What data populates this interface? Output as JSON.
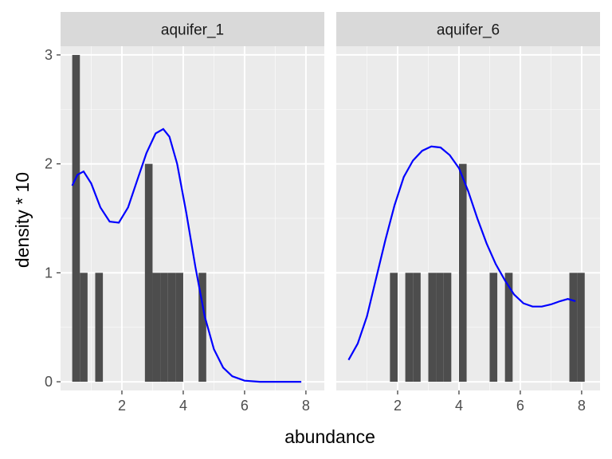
{
  "chart_data": {
    "type": "bar",
    "xlabel": "abundance",
    "ylabel": "density * 10",
    "xlim": [
      0,
      8.6
    ],
    "ylim": [
      -0.08,
      3.08
    ],
    "xticks": [
      2,
      4,
      6,
      8
    ],
    "yticks": [
      0,
      1,
      2,
      3
    ],
    "bin_width": 0.25,
    "grid": true,
    "colors": {
      "panel": "#ebebeb",
      "strip": "#d9d9d9",
      "bars": "#4d4d4d",
      "curve": "#0000ff",
      "grid": "#ffffff"
    },
    "panels": [
      {
        "strip_label": "aquifer_1",
        "histogram": [
          {
            "x0": 0.38,
            "x1": 0.63,
            "count": 3
          },
          {
            "x0": 0.63,
            "x1": 0.88,
            "count": 1
          },
          {
            "x0": 1.13,
            "x1": 1.38,
            "count": 1
          },
          {
            "x0": 2.75,
            "x1": 3.0,
            "count": 2
          },
          {
            "x0": 3.0,
            "x1": 3.25,
            "count": 1
          },
          {
            "x0": 3.25,
            "x1": 3.5,
            "count": 1
          },
          {
            "x0": 3.5,
            "x1": 3.75,
            "count": 1
          },
          {
            "x0": 3.75,
            "x1": 4.0,
            "count": 1
          },
          {
            "x0": 4.5,
            "x1": 4.75,
            "count": 1
          }
        ],
        "density_curve": [
          [
            0.38,
            1.8
          ],
          [
            0.55,
            1.9
          ],
          [
            0.75,
            1.93
          ],
          [
            1.0,
            1.82
          ],
          [
            1.3,
            1.6
          ],
          [
            1.6,
            1.47
          ],
          [
            1.9,
            1.46
          ],
          [
            2.2,
            1.6
          ],
          [
            2.5,
            1.85
          ],
          [
            2.8,
            2.1
          ],
          [
            3.1,
            2.28
          ],
          [
            3.35,
            2.32
          ],
          [
            3.55,
            2.25
          ],
          [
            3.8,
            2.0
          ],
          [
            4.1,
            1.55
          ],
          [
            4.4,
            1.05
          ],
          [
            4.7,
            0.6
          ],
          [
            5.0,
            0.3
          ],
          [
            5.3,
            0.13
          ],
          [
            5.6,
            0.05
          ],
          [
            6.0,
            0.01
          ],
          [
            6.5,
            0.0
          ],
          [
            7.0,
            0.0
          ],
          [
            7.5,
            0.0
          ],
          [
            7.85,
            0.0
          ]
        ]
      },
      {
        "strip_label": "aquifer_6",
        "histogram": [
          {
            "x0": 1.75,
            "x1": 2.0,
            "count": 1
          },
          {
            "x0": 2.25,
            "x1": 2.5,
            "count": 1
          },
          {
            "x0": 2.5,
            "x1": 2.75,
            "count": 1
          },
          {
            "x0": 3.0,
            "x1": 3.25,
            "count": 1
          },
          {
            "x0": 3.25,
            "x1": 3.5,
            "count": 1
          },
          {
            "x0": 3.5,
            "x1": 3.75,
            "count": 1
          },
          {
            "x0": 4.0,
            "x1": 4.25,
            "count": 2
          },
          {
            "x0": 5.0,
            "x1": 5.25,
            "count": 1
          },
          {
            "x0": 5.5,
            "x1": 5.75,
            "count": 1
          },
          {
            "x0": 7.6,
            "x1": 7.85,
            "count": 1
          },
          {
            "x0": 7.85,
            "x1": 8.1,
            "count": 1
          }
        ],
        "density_curve": [
          [
            0.4,
            0.2
          ],
          [
            0.7,
            0.35
          ],
          [
            1.0,
            0.6
          ],
          [
            1.3,
            0.95
          ],
          [
            1.6,
            1.3
          ],
          [
            1.9,
            1.62
          ],
          [
            2.2,
            1.88
          ],
          [
            2.5,
            2.03
          ],
          [
            2.8,
            2.12
          ],
          [
            3.1,
            2.16
          ],
          [
            3.4,
            2.15
          ],
          [
            3.7,
            2.08
          ],
          [
            4.0,
            1.96
          ],
          [
            4.3,
            1.75
          ],
          [
            4.6,
            1.5
          ],
          [
            4.9,
            1.27
          ],
          [
            5.2,
            1.08
          ],
          [
            5.5,
            0.93
          ],
          [
            5.8,
            0.8
          ],
          [
            6.1,
            0.72
          ],
          [
            6.4,
            0.69
          ],
          [
            6.7,
            0.69
          ],
          [
            7.0,
            0.71
          ],
          [
            7.3,
            0.74
          ],
          [
            7.55,
            0.76
          ],
          [
            7.8,
            0.74
          ]
        ]
      }
    ]
  }
}
